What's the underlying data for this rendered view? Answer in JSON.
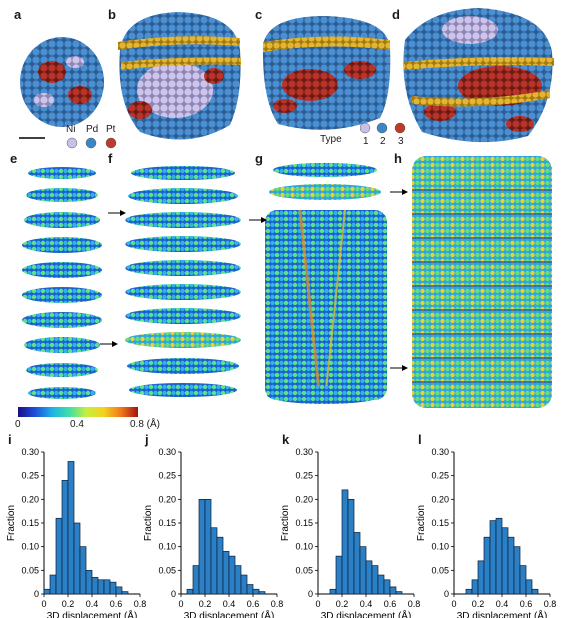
{
  "figure": {
    "panel_labels": [
      "a",
      "b",
      "c",
      "d",
      "e",
      "f",
      "g",
      "h",
      "i",
      "j",
      "k",
      "l"
    ],
    "element_legend": [
      {
        "label": "Ni",
        "color": "#c9bfe8"
      },
      {
        "label": "Pd",
        "color": "#3d86c6"
      },
      {
        "label": "Pt",
        "color": "#c0392b"
      }
    ],
    "type_legend": {
      "title": "Type",
      "items": [
        {
          "label": "1",
          "color": "#c9bfe8"
        },
        {
          "label": "2",
          "color": "#3d86c6"
        },
        {
          "label": "3",
          "color": "#c0392b"
        }
      ]
    },
    "colorbar": {
      "tick_labels": [
        "0",
        "0.4",
        "0.8 (Å)"
      ],
      "colors": [
        "#1a0f8a",
        "#1f4fd8",
        "#1fb2e8",
        "#3fe0a8",
        "#c6ef3c",
        "#f4d21f",
        "#f07a1a",
        "#a4120f"
      ]
    }
  },
  "chart_data": [
    {
      "type": "bar",
      "panel": "i",
      "xlabel": "3D displacement (Å)",
      "ylabel": "Fraction",
      "xlim": [
        0,
        0.8
      ],
      "ylim": [
        0,
        0.3
      ],
      "xticks": [
        "0",
        "0.2",
        "0.4",
        "0.6",
        "0.8"
      ],
      "yticks": [
        "0",
        "0.05",
        "0.10",
        "0.15",
        "0.20",
        "0.25",
        "0.30"
      ],
      "bin_width": 0.05,
      "bin_starts": [
        0.0,
        0.05,
        0.1,
        0.15,
        0.2,
        0.25,
        0.3,
        0.35,
        0.4,
        0.45,
        0.5,
        0.55,
        0.6,
        0.65
      ],
      "values": [
        0.01,
        0.04,
        0.16,
        0.24,
        0.28,
        0.15,
        0.1,
        0.05,
        0.035,
        0.03,
        0.03,
        0.025,
        0.015,
        0.005
      ]
    },
    {
      "type": "bar",
      "panel": "j",
      "xlabel": "3D displacement (Å)",
      "ylabel": "Fraction",
      "xlim": [
        0,
        0.8
      ],
      "ylim": [
        0,
        0.3
      ],
      "xticks": [
        "0",
        "0.2",
        "0.4",
        "0.6",
        "0.8"
      ],
      "yticks": [
        "0",
        "0.05",
        "0.10",
        "0.15",
        "0.20",
        "0.25",
        "0.30"
      ],
      "bin_width": 0.05,
      "bin_starts": [
        0.05,
        0.1,
        0.15,
        0.2,
        0.25,
        0.3,
        0.35,
        0.4,
        0.45,
        0.5,
        0.55,
        0.6,
        0.65
      ],
      "values": [
        0.01,
        0.06,
        0.2,
        0.2,
        0.14,
        0.12,
        0.09,
        0.08,
        0.06,
        0.04,
        0.02,
        0.01,
        0.005
      ]
    },
    {
      "type": "bar",
      "panel": "k",
      "xlabel": "3D displacement (Å)",
      "ylabel": "Fraction",
      "xlim": [
        0,
        0.8
      ],
      "ylim": [
        0,
        0.3
      ],
      "xticks": [
        "0",
        "0.2",
        "0.4",
        "0.6",
        "0.8"
      ],
      "yticks": [
        "0",
        "0.05",
        "0.10",
        "0.15",
        "0.20",
        "0.25",
        "0.30"
      ],
      "bin_width": 0.05,
      "bin_starts": [
        0.1,
        0.15,
        0.2,
        0.25,
        0.3,
        0.35,
        0.4,
        0.45,
        0.5,
        0.55,
        0.6,
        0.65
      ],
      "values": [
        0.01,
        0.08,
        0.22,
        0.2,
        0.13,
        0.1,
        0.07,
        0.06,
        0.04,
        0.03,
        0.015,
        0.005
      ]
    },
    {
      "type": "bar",
      "panel": "l",
      "xlabel": "3D displacement (Å)",
      "ylabel": "Fraction",
      "xlim": [
        0,
        0.8
      ],
      "ylim": [
        0,
        0.3
      ],
      "xticks": [
        "0",
        "0.2",
        "0.4",
        "0.6",
        "0.8"
      ],
      "yticks": [
        "0",
        "0.05",
        "0.10",
        "0.15",
        "0.20",
        "0.25",
        "0.30"
      ],
      "bin_width": 0.05,
      "bin_starts": [
        0.1,
        0.15,
        0.2,
        0.25,
        0.3,
        0.35,
        0.4,
        0.45,
        0.5,
        0.55,
        0.6,
        0.65
      ],
      "values": [
        0.01,
        0.03,
        0.07,
        0.12,
        0.155,
        0.16,
        0.14,
        0.12,
        0.1,
        0.06,
        0.03,
        0.01
      ]
    }
  ]
}
